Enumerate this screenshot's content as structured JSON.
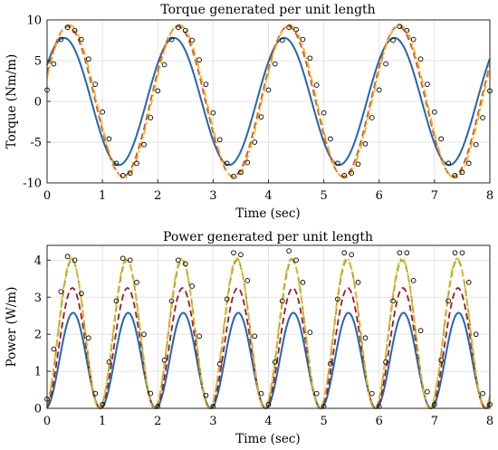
{
  "chart_data": [
    {
      "type": "line",
      "title": "Torque generated per unit length",
      "xlabel": "Time (sec)",
      "ylabel": "Torque (Nm/m)",
      "xlim": [
        0,
        8
      ],
      "ylim": [
        -10,
        10
      ],
      "xticks": [
        "0",
        "1",
        "2",
        "3",
        "4",
        "5",
        "6",
        "7",
        "8"
      ],
      "yticks": [
        "-10",
        "-5",
        "0",
        "5",
        "10"
      ],
      "grid": true,
      "legend": "none",
      "series": [
        {
          "style": "solid",
          "color": "#2166b0",
          "amplitude": 7.8,
          "period": 1.99,
          "phase_deg": 35
        },
        {
          "style": "dashed",
          "color": "#d95319",
          "amplitude": 9.2,
          "period": 1.99,
          "phase_deg": 22
        },
        {
          "style": "dash-dot",
          "color": "#edb120",
          "amplitude": 9.4,
          "period": 1.99,
          "phase_deg": 18
        },
        {
          "style": "markers",
          "color": "#000000",
          "x": [
            0.0,
            0.12,
            0.25,
            0.37,
            0.5,
            0.62,
            0.75,
            0.87,
            1.0,
            1.12,
            1.25,
            1.37,
            1.5,
            1.62,
            1.75,
            1.87,
            2.0,
            2.12,
            2.25,
            2.37,
            2.5,
            2.62,
            2.75,
            2.87,
            3.0,
            3.12,
            3.25,
            3.37,
            3.5,
            3.62,
            3.75,
            3.87,
            4.0,
            4.12,
            4.25,
            4.37,
            4.5,
            4.62,
            4.75,
            4.87,
            5.0,
            5.12,
            5.25,
            5.37,
            5.5,
            5.62,
            5.75,
            5.87,
            6.0,
            6.12,
            6.25,
            6.37,
            6.5,
            6.62,
            6.75,
            6.87,
            7.0,
            7.12,
            7.25,
            7.37,
            7.5,
            7.62,
            7.75,
            7.87,
            8.0
          ],
          "y": [
            1.4,
            4.6,
            7.6,
            9.1,
            8.7,
            7.6,
            5.2,
            2.1,
            -1.3,
            -4.6,
            -7.6,
            -9.1,
            -8.8,
            -7.6,
            -5.3,
            -2.0,
            1.3,
            4.5,
            7.6,
            9.1,
            8.7,
            7.5,
            5.1,
            2.1,
            -1.4,
            -4.7,
            -7.6,
            -9.2,
            -8.7,
            -7.5,
            -5.0,
            -1.9,
            1.4,
            4.6,
            7.5,
            9.1,
            8.8,
            7.6,
            5.3,
            2.0,
            -1.4,
            -4.6,
            -7.6,
            -9.1,
            -8.8,
            -7.7,
            -5.2,
            -2.0,
            1.4,
            4.6,
            7.5,
            9.2,
            8.7,
            7.6,
            5.2,
            2.1,
            -1.3,
            -4.6,
            -7.6,
            -9.1,
            -8.7,
            -7.6,
            -5.3,
            -2.0,
            1.3
          ]
        }
      ]
    },
    {
      "type": "line",
      "title": "Power generated per unit length",
      "xlabel": "Time (sec)",
      "ylabel": "Power (W/m)",
      "xlim": [
        0,
        8
      ],
      "ylim": [
        0,
        4.4
      ],
      "xticks": [
        "0",
        "1",
        "2",
        "3",
        "4",
        "5",
        "6",
        "7",
        "8"
      ],
      "yticks": [
        "0",
        "1",
        "2",
        "3",
        "4"
      ],
      "grid": true,
      "legend": "none",
      "series": [
        {
          "style": "solid",
          "color": "#2166b0",
          "peak": 2.58,
          "period": 0.995,
          "phase_deg": 10
        },
        {
          "style": "dashed",
          "color": "#a2142f",
          "peak": 3.25,
          "period": 0.995,
          "phase_deg": 14
        },
        {
          "style": "dashed",
          "color": "#77ac30",
          "peak": 4.0,
          "period": 0.995,
          "phase_deg": 18
        },
        {
          "style": "dash-dot",
          "color": "#edb120",
          "peak": 4.05,
          "period": 0.995,
          "phase_deg": 20
        },
        {
          "style": "markers",
          "color": "#000000",
          "x": [
            0.0,
            0.12,
            0.25,
            0.37,
            0.5,
            0.62,
            0.75,
            0.87,
            1.0,
            1.12,
            1.25,
            1.37,
            1.5,
            1.62,
            1.75,
            1.87,
            2.0,
            2.12,
            2.25,
            2.37,
            2.5,
            2.62,
            2.75,
            2.87,
            3.0,
            3.12,
            3.25,
            3.37,
            3.5,
            3.62,
            3.75,
            3.87,
            4.0,
            4.12,
            4.25,
            4.37,
            4.5,
            4.62,
            4.75,
            4.87,
            5.0,
            5.12,
            5.25,
            5.37,
            5.5,
            5.62,
            5.75,
            5.87,
            6.0,
            6.12,
            6.25,
            6.37,
            6.5,
            6.62,
            6.75,
            6.87,
            7.0,
            7.12,
            7.25,
            7.37,
            7.5,
            7.62,
            7.75,
            7.87,
            8.0
          ],
          "y": [
            0.25,
            1.6,
            3.15,
            4.1,
            4.0,
            3.1,
            1.9,
            0.4,
            0.1,
            1.25,
            2.9,
            4.05,
            4.0,
            3.4,
            2.0,
            0.4,
            0.05,
            1.3,
            2.9,
            4.0,
            3.9,
            3.3,
            1.95,
            0.35,
            0.05,
            1.2,
            2.95,
            4.2,
            4.15,
            3.45,
            1.95,
            0.4,
            0.1,
            1.25,
            2.9,
            4.25,
            4.0,
            3.4,
            2.05,
            0.4,
            0.05,
            1.2,
            2.95,
            4.2,
            4.15,
            3.4,
            1.9,
            0.4,
            0.05,
            1.25,
            2.9,
            4.2,
            4.2,
            3.45,
            2.1,
            0.45,
            0.1,
            1.3,
            2.9,
            4.2,
            4.2,
            3.4,
            2.0,
            0.4,
            0.1
          ]
        }
      ]
    }
  ]
}
